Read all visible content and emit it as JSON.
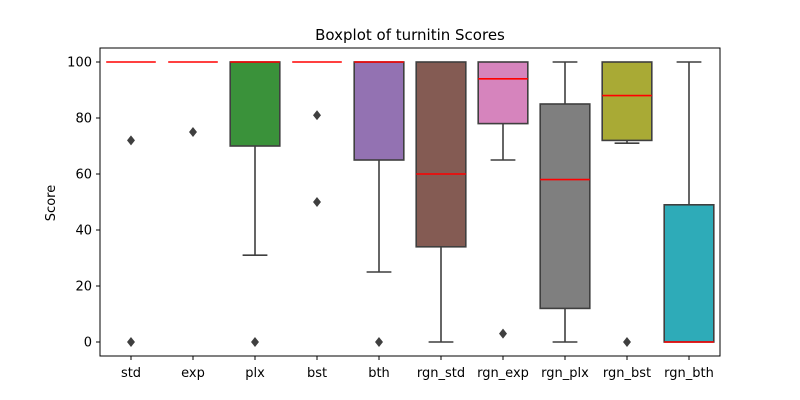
{
  "chart_data": {
    "type": "boxplot",
    "title": "Boxplot of turnitin Scores",
    "xlabel": "",
    "ylabel": "Score",
    "ylim": [
      -5,
      105
    ],
    "yticks": [
      0,
      20,
      40,
      60,
      80,
      100
    ],
    "grid": false,
    "median_color": "#ff0000",
    "categories": [
      "std",
      "exp",
      "plx",
      "bst",
      "bth",
      "rgn_std",
      "rgn_exp",
      "rgn_plx",
      "rgn_bst",
      "rgn_bth"
    ],
    "boxes": [
      {
        "name": "std",
        "color": "#3274a1",
        "q1": 100,
        "median": 100,
        "q3": 100,
        "whisker_low": 100,
        "whisker_high": 100,
        "outliers": [
          72,
          0
        ]
      },
      {
        "name": "exp",
        "color": "#e1812c",
        "q1": 100,
        "median": 100,
        "q3": 100,
        "whisker_low": 100,
        "whisker_high": 100,
        "outliers": [
          75
        ]
      },
      {
        "name": "plx",
        "color": "#3a923a",
        "q1": 70,
        "median": 100,
        "q3": 100,
        "whisker_low": 31,
        "whisker_high": 100,
        "outliers": [
          0
        ]
      },
      {
        "name": "bst",
        "color": "#c03d3e",
        "q1": 100,
        "median": 100,
        "q3": 100,
        "whisker_low": 100,
        "whisker_high": 100,
        "outliers": [
          81,
          50
        ]
      },
      {
        "name": "bth",
        "color": "#9372b2",
        "q1": 65,
        "median": 100,
        "q3": 100,
        "whisker_low": 25,
        "whisker_high": 100,
        "outliers": [
          0
        ]
      },
      {
        "name": "rgn_std",
        "color": "#845b53",
        "q1": 34,
        "median": 60,
        "q3": 100,
        "whisker_low": 0,
        "whisker_high": 100,
        "outliers": []
      },
      {
        "name": "rgn_exp",
        "color": "#d684bd",
        "q1": 78,
        "median": 94,
        "q3": 100,
        "whisker_low": 65,
        "whisker_high": 100,
        "outliers": [
          3
        ]
      },
      {
        "name": "rgn_plx",
        "color": "#7f7f7f",
        "q1": 12,
        "median": 58,
        "q3": 85,
        "whisker_low": 0,
        "whisker_high": 100,
        "outliers": []
      },
      {
        "name": "rgn_bst",
        "color": "#a9aa35",
        "q1": 72,
        "median": 88,
        "q3": 100,
        "whisker_low": 71,
        "whisker_high": 100,
        "outliers": [
          0
        ]
      },
      {
        "name": "rgn_bth",
        "color": "#2eabb8",
        "q1": 0,
        "median": 0,
        "q3": 49,
        "whisker_low": 0,
        "whisker_high": 100,
        "outliers": []
      }
    ]
  }
}
